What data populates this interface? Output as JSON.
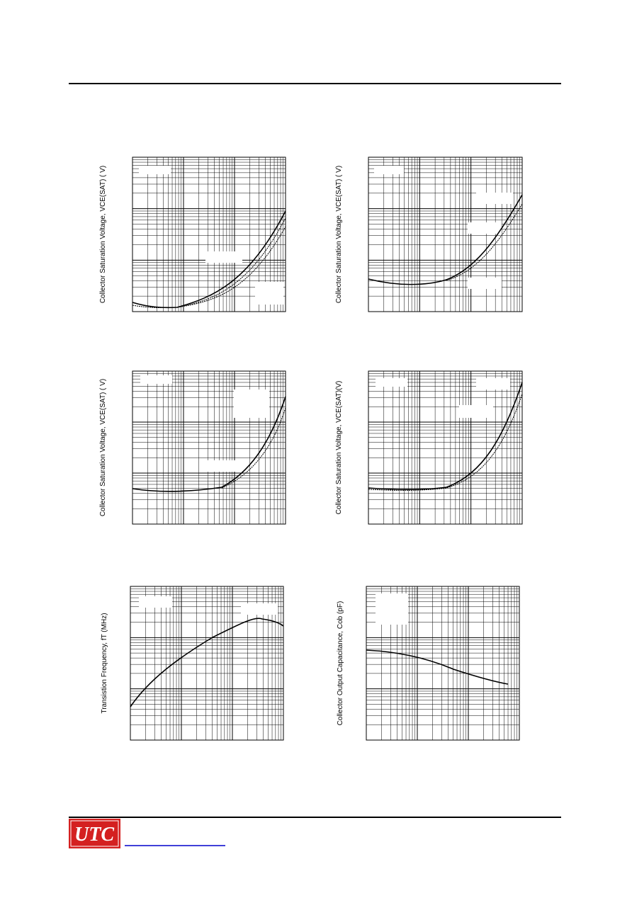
{
  "charts": [
    {
      "y_label": "Collector  Saturation Voltage, VCE(SAT) ( V)"
    },
    {
      "y_label": "Collector  Saturation Voltage, VCE(SAT) ( V)"
    },
    {
      "y_label": "Collector  Saturation Voltage, VCE(SAT) ( V)"
    },
    {
      "y_label": "Collector  Saturation Voltage, VCE(SAT)(V)"
    },
    {
      "y_label": "Transistion Frequency, fT (MHz)"
    },
    {
      "y_label": "Collector  Output Capacitance, Cob (pF)"
    }
  ],
  "footer": {
    "logo": "UTC"
  }
}
